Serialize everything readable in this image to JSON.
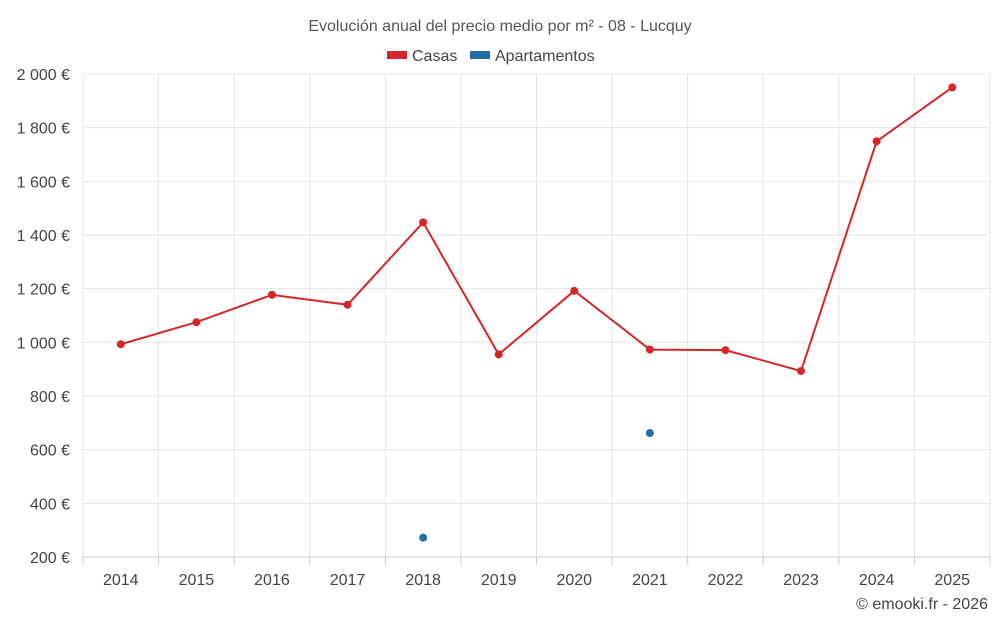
{
  "chart_data": {
    "type": "line",
    "title": "Evolución anual del precio medio por m² - 08 - Lucquy",
    "categories": [
      "2014",
      "2015",
      "2016",
      "2017",
      "2018",
      "2019",
      "2020",
      "2021",
      "2022",
      "2023",
      "2024",
      "2025"
    ],
    "series": [
      {
        "name": "Casas",
        "color": "#d62728",
        "values": [
          993,
          1075,
          1177,
          1140,
          1447,
          955,
          1192,
          973,
          971,
          893,
          1749,
          1950
        ]
      },
      {
        "name": "Apartamentos",
        "color": "#1f6fa8",
        "values": [
          null,
          null,
          null,
          null,
          272,
          null,
          null,
          662,
          null,
          null,
          null,
          null
        ]
      }
    ],
    "ylim": [
      200,
      2000
    ],
    "yticks": [
      200,
      400,
      600,
      800,
      1000,
      1200,
      1400,
      1600,
      1800,
      2000
    ],
    "ytick_labels": [
      "200 €",
      "400 €",
      "600 €",
      "800 €",
      "1 000 €",
      "1 200 €",
      "1 400 €",
      "1 600 €",
      "1 800 €",
      "2 000 €"
    ],
    "xlabel": "",
    "ylabel": "",
    "grid": true,
    "legend_position": "top-center"
  },
  "credit": "© emooki.fr - 2026"
}
